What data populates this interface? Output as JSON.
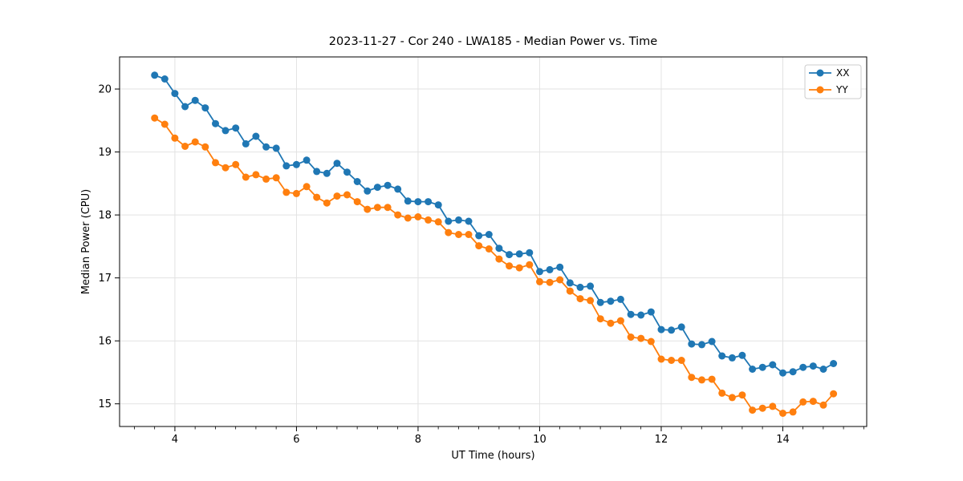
{
  "chart_data": {
    "type": "line",
    "title": "2023-11-27 - Cor 240 - LWA185 - Median Power vs. Time",
    "xlabel": "UT Time (hours)",
    "ylabel": "Median Power (CPU)",
    "xlim": [
      3.09,
      15.38
    ],
    "ylim": [
      14.64,
      20.51
    ],
    "xticks": [
      4,
      6,
      8,
      10,
      12,
      14
    ],
    "yticks": [
      15,
      16,
      17,
      18,
      19,
      20
    ],
    "minor_xtick_step": 0.3333,
    "grid": true,
    "grid_color": "#e2e2e2",
    "spine_color": "#000000",
    "legend_position": "upper right",
    "x": [
      3.667,
      3.833,
      4.0,
      4.167,
      4.333,
      4.5,
      4.667,
      4.833,
      5.0,
      5.167,
      5.333,
      5.5,
      5.667,
      5.833,
      6.0,
      6.167,
      6.333,
      6.5,
      6.667,
      6.833,
      7.0,
      7.167,
      7.333,
      7.5,
      7.667,
      7.833,
      8.0,
      8.167,
      8.333,
      8.5,
      8.667,
      8.833,
      9.0,
      9.167,
      9.333,
      9.5,
      9.667,
      9.833,
      10.0,
      10.167,
      10.333,
      10.5,
      10.667,
      10.833,
      11.0,
      11.167,
      11.333,
      11.5,
      11.667,
      11.833,
      12.0,
      12.167,
      12.333,
      12.5,
      12.667,
      12.833,
      13.0,
      13.167,
      13.333,
      13.5,
      13.667,
      13.833,
      14.0,
      14.167,
      14.333,
      14.5,
      14.667,
      14.833
    ],
    "series": [
      {
        "name": "XX",
        "color": "#1f77b4",
        "marker": "circle",
        "values": [
          20.22,
          20.16,
          19.93,
          19.72,
          19.82,
          19.7,
          19.45,
          19.34,
          19.38,
          19.13,
          19.25,
          19.08,
          19.06,
          18.78,
          18.8,
          18.87,
          18.69,
          18.66,
          18.82,
          18.68,
          18.53,
          18.38,
          18.44,
          18.47,
          18.41,
          18.22,
          18.21,
          18.21,
          18.16,
          17.9,
          17.92,
          17.9,
          17.67,
          17.69,
          17.47,
          17.37,
          17.38,
          17.4,
          17.1,
          17.13,
          17.17,
          16.92,
          16.85,
          16.87,
          16.61,
          16.63,
          16.66,
          16.42,
          16.41,
          16.46,
          16.18,
          16.17,
          16.22,
          15.95,
          15.94,
          15.99,
          15.76,
          15.73,
          15.77,
          15.55,
          15.58,
          15.62,
          15.49,
          15.51,
          15.58,
          15.6,
          15.55,
          15.64
        ]
      },
      {
        "name": "YY",
        "color": "#ff7f0e",
        "marker": "circle",
        "values": [
          19.54,
          19.44,
          19.22,
          19.09,
          19.16,
          19.08,
          18.83,
          18.75,
          18.8,
          18.6,
          18.64,
          18.57,
          18.59,
          18.36,
          18.34,
          18.45,
          18.28,
          18.19,
          18.3,
          18.32,
          18.21,
          18.09,
          18.12,
          18.12,
          18.0,
          17.95,
          17.97,
          17.92,
          17.89,
          17.72,
          17.69,
          17.69,
          17.51,
          17.46,
          17.3,
          17.19,
          17.16,
          17.21,
          16.94,
          16.93,
          16.97,
          16.79,
          16.67,
          16.64,
          16.35,
          16.28,
          16.32,
          16.06,
          16.04,
          15.99,
          15.71,
          15.69,
          15.69,
          15.42,
          15.38,
          15.39,
          15.17,
          15.1,
          15.14,
          14.9,
          14.93,
          14.96,
          14.85,
          14.87,
          15.03,
          15.04,
          14.98,
          15.16
        ]
      }
    ]
  }
}
